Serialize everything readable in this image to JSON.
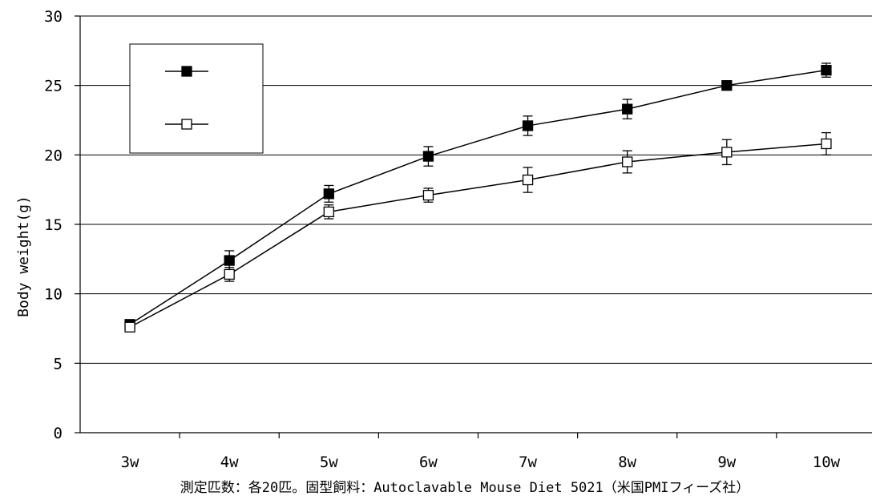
{
  "chart_data": {
    "type": "line",
    "title": "",
    "xlabel": "",
    "ylabel": "Body weight(g)",
    "categories": [
      "3w",
      "4w",
      "5w",
      "6w",
      "7w",
      "8w",
      "9w",
      "10w"
    ],
    "ylim": [
      0,
      30
    ],
    "yticks": [
      0,
      5,
      10,
      15,
      20,
      25,
      30
    ],
    "grid": true,
    "legend_position": "top-left",
    "series": [
      {
        "marker": "filled-square",
        "color": "#000000",
        "values": [
          7.8,
          12.4,
          17.2,
          19.9,
          22.1,
          23.3,
          25.0,
          26.1
        ],
        "errors": [
          0.3,
          0.7,
          0.6,
          0.7,
          0.7,
          0.7,
          0.3,
          0.5
        ]
      },
      {
        "marker": "open-square",
        "color": "#000000",
        "values": [
          7.6,
          11.4,
          15.9,
          17.1,
          18.2,
          19.5,
          20.2,
          20.8
        ],
        "errors": [
          0.3,
          0.5,
          0.5,
          0.5,
          0.9,
          0.8,
          0.9,
          0.8
        ]
      }
    ],
    "footnote": "測定匹数：各20匹。固型飼料：Autoclavable Mouse Diet 5021（米国PMIフィーズ社）"
  }
}
